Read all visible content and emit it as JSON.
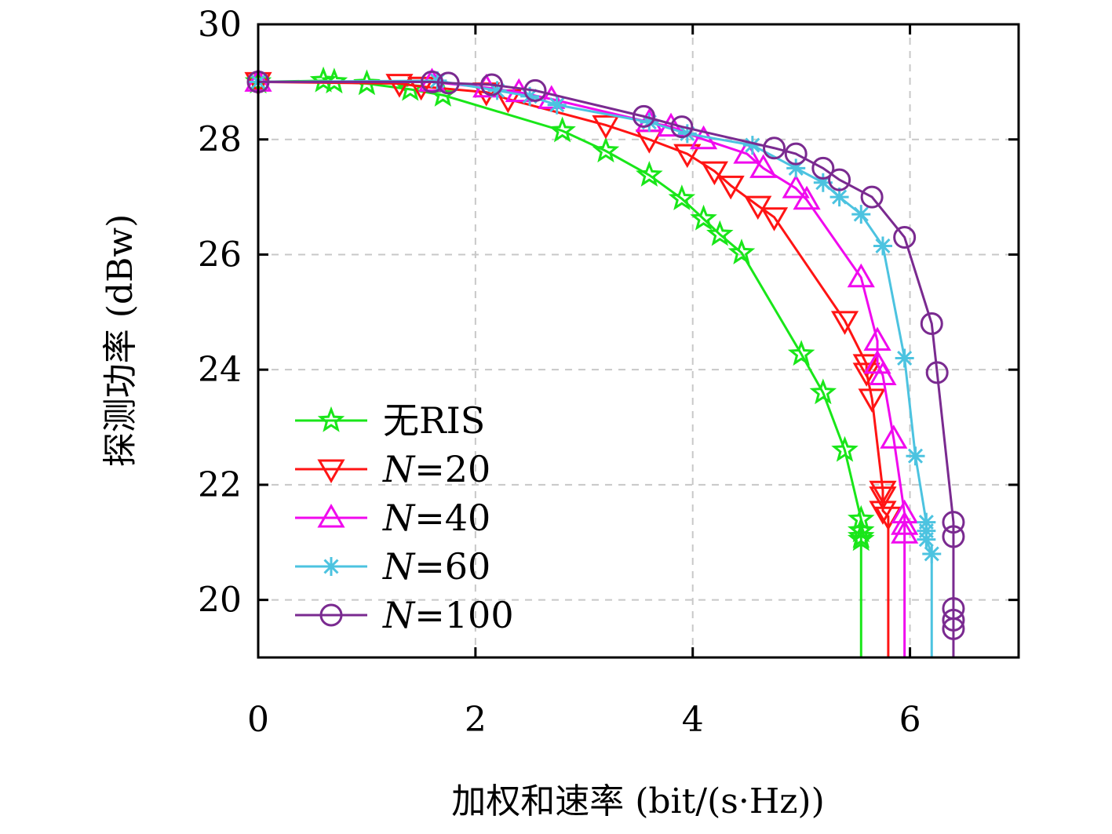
{
  "chart_data": {
    "type": "line",
    "xlabel": "加权和速率 (bit/(s·Hz))",
    "ylabel": "探测功率 (dBw)",
    "xlim": [
      0,
      7
    ],
    "ylim": [
      19,
      30
    ],
    "xticks": [
      "0",
      "2",
      "4",
      "6"
    ],
    "yticks": [
      "20",
      "22",
      "24",
      "26",
      "28",
      "30"
    ],
    "grid": true,
    "legend_position": "bottom-left",
    "series": [
      {
        "name": "无RIS",
        "name_parts": {
          "pre": "无RIS",
          "var": "",
          "post": ""
        },
        "color": "#19e619",
        "marker": "star",
        "points": [
          [
            0,
            29.0
          ],
          [
            0.6,
            29.02
          ],
          [
            0.7,
            29.0
          ],
          [
            1.0,
            28.97
          ],
          [
            1.4,
            28.87
          ],
          [
            1.7,
            28.77
          ],
          [
            2.8,
            28.15
          ],
          [
            3.2,
            27.8
          ],
          [
            3.6,
            27.38
          ],
          [
            3.9,
            26.97
          ],
          [
            4.1,
            26.62
          ],
          [
            4.25,
            26.35
          ],
          [
            4.45,
            26.03
          ],
          [
            5.0,
            24.27
          ],
          [
            5.2,
            23.6
          ],
          [
            5.4,
            22.6
          ],
          [
            5.55,
            21.4
          ],
          [
            5.55,
            21.2
          ],
          [
            5.55,
            21.1
          ],
          [
            5.55,
            21.05
          ],
          [
            5.55,
            19.0
          ]
        ]
      },
      {
        "name": "N=20",
        "name_parts": {
          "pre": "",
          "var": "N",
          "post": "=20"
        },
        "color": "#ff1414",
        "marker": "triangle-down",
        "points": [
          [
            0,
            29.0
          ],
          [
            1.3,
            28.97
          ],
          [
            1.5,
            28.92
          ],
          [
            2.1,
            28.82
          ],
          [
            2.3,
            28.7
          ],
          [
            3.2,
            28.25
          ],
          [
            3.6,
            28.0
          ],
          [
            3.95,
            27.75
          ],
          [
            4.2,
            27.45
          ],
          [
            4.35,
            27.2
          ],
          [
            4.6,
            26.85
          ],
          [
            4.75,
            26.65
          ],
          [
            5.4,
            24.85
          ],
          [
            5.6,
            24.1
          ],
          [
            5.6,
            23.95
          ],
          [
            5.65,
            23.5
          ],
          [
            5.75,
            21.9
          ],
          [
            5.75,
            21.8
          ],
          [
            5.75,
            21.55
          ],
          [
            5.8,
            21.45
          ],
          [
            5.8,
            19.0
          ]
        ]
      },
      {
        "name": "N=40",
        "name_parts": {
          "pre": "",
          "var": "N",
          "post": "=40"
        },
        "color": "#f00aee",
        "marker": "triangle-up",
        "points": [
          [
            0,
            29.0
          ],
          [
            1.6,
            29.0
          ],
          [
            2.1,
            28.9
          ],
          [
            2.4,
            28.82
          ],
          [
            2.7,
            28.7
          ],
          [
            3.6,
            28.3
          ],
          [
            3.8,
            28.22
          ],
          [
            4.1,
            28.0
          ],
          [
            4.5,
            27.75
          ],
          [
            4.65,
            27.5
          ],
          [
            4.95,
            27.15
          ],
          [
            5.05,
            26.95
          ],
          [
            5.55,
            25.6
          ],
          [
            5.7,
            24.5
          ],
          [
            5.7,
            24.1
          ],
          [
            5.75,
            23.9
          ],
          [
            5.85,
            22.8
          ],
          [
            5.95,
            21.5
          ],
          [
            5.95,
            21.3
          ],
          [
            5.95,
            21.15
          ],
          [
            5.95,
            19.0
          ]
        ]
      },
      {
        "name": "N=60",
        "name_parts": {
          "pre": "",
          "var": "N",
          "post": "=60"
        },
        "color": "#4cc3e0",
        "marker": "asterisk",
        "points": [
          [
            0,
            29.0
          ],
          [
            1.65,
            29.02
          ],
          [
            2.2,
            28.85
          ],
          [
            2.5,
            28.75
          ],
          [
            2.75,
            28.6
          ],
          [
            3.6,
            28.3
          ],
          [
            3.95,
            28.1
          ],
          [
            4.55,
            27.9
          ],
          [
            4.95,
            27.5
          ],
          [
            5.2,
            27.25
          ],
          [
            5.35,
            27.0
          ],
          [
            5.55,
            26.7
          ],
          [
            5.75,
            26.15
          ],
          [
            5.95,
            24.2
          ],
          [
            6.05,
            22.5
          ],
          [
            6.15,
            21.35
          ],
          [
            6.15,
            21.2
          ],
          [
            6.15,
            21.05
          ],
          [
            6.2,
            20.8
          ],
          [
            6.2,
            19.0
          ]
        ]
      },
      {
        "name": "N=100",
        "name_parts": {
          "pre": "",
          "var": "N",
          "post": "=100"
        },
        "color": "#7a2a90",
        "marker": "circle",
        "points": [
          [
            0,
            29.0
          ],
          [
            1.6,
            29.0
          ],
          [
            1.75,
            28.98
          ],
          [
            2.15,
            28.95
          ],
          [
            2.55,
            28.85
          ],
          [
            3.55,
            28.4
          ],
          [
            3.9,
            28.22
          ],
          [
            4.75,
            27.85
          ],
          [
            4.95,
            27.75
          ],
          [
            5.2,
            27.5
          ],
          [
            5.35,
            27.3
          ],
          [
            5.65,
            27.0
          ],
          [
            5.95,
            26.3
          ],
          [
            6.2,
            24.8
          ],
          [
            6.25,
            23.95
          ],
          [
            6.4,
            21.35
          ],
          [
            6.4,
            21.1
          ],
          [
            6.4,
            19.85
          ],
          [
            6.4,
            19.65
          ],
          [
            6.4,
            19.5
          ],
          [
            6.4,
            19.0
          ]
        ]
      }
    ]
  }
}
